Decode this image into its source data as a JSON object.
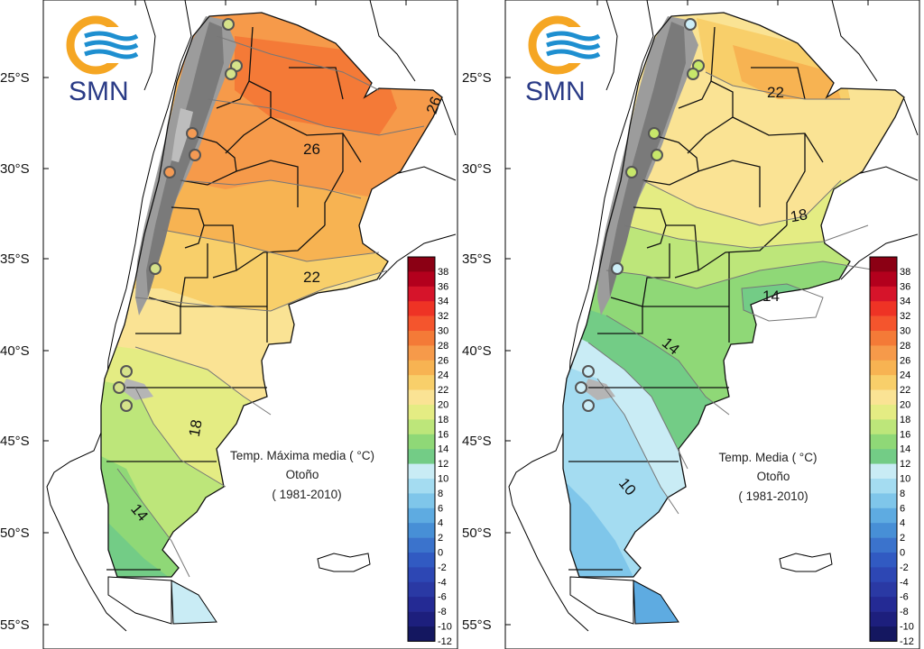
{
  "colorbar": {
    "labels": [
      "38",
      "36",
      "34",
      "32",
      "30",
      "28",
      "26",
      "24",
      "22",
      "20",
      "18",
      "16",
      "14",
      "12",
      "10",
      "8",
      "6",
      "4",
      "2",
      "0",
      "-2",
      "-4",
      "-6",
      "-8",
      "-10",
      "-12"
    ],
    "colors": [
      "#8b0014",
      "#b3001d",
      "#d6142a",
      "#ee3325",
      "#f4552d",
      "#f47a37",
      "#f69a4a",
      "#f7b352",
      "#f8cf6a",
      "#fae394",
      "#e4ec83",
      "#bde67a",
      "#8fd877",
      "#73cc86",
      "#c9ecf5",
      "#a4dcf1",
      "#7fc6ea",
      "#5eabe1",
      "#478fd6",
      "#3b73cc",
      "#315ac2",
      "#2d47b4",
      "#2a39a4",
      "#242a94",
      "#1d1f7d",
      "#141760"
    ]
  },
  "axes": {
    "lat_labels": [
      "25°S",
      "30°S",
      "35°S",
      "40°S",
      "45°S",
      "50°S",
      "55°S"
    ]
  },
  "logo": {
    "text": "SMN"
  },
  "panels": [
    {
      "id": "max",
      "title": "Temp. Máxima media  ( °C)",
      "season": "Otoño",
      "period": "( 1981-2010)",
      "isolines": [
        "26",
        "26",
        "22",
        "18",
        "14"
      ],
      "station_color": "#f39a54",
      "station_color_alt": "#d6e28a"
    },
    {
      "id": "mean",
      "title": "Temp. Media  ( °C)",
      "season": "Otoño",
      "period": "( 1981-2010)",
      "isolines": [
        "22",
        "18",
        "14",
        "14",
        "10"
      ],
      "station_color": "#c7e76a",
      "station_color_alt": "#cdeef8"
    }
  ]
}
